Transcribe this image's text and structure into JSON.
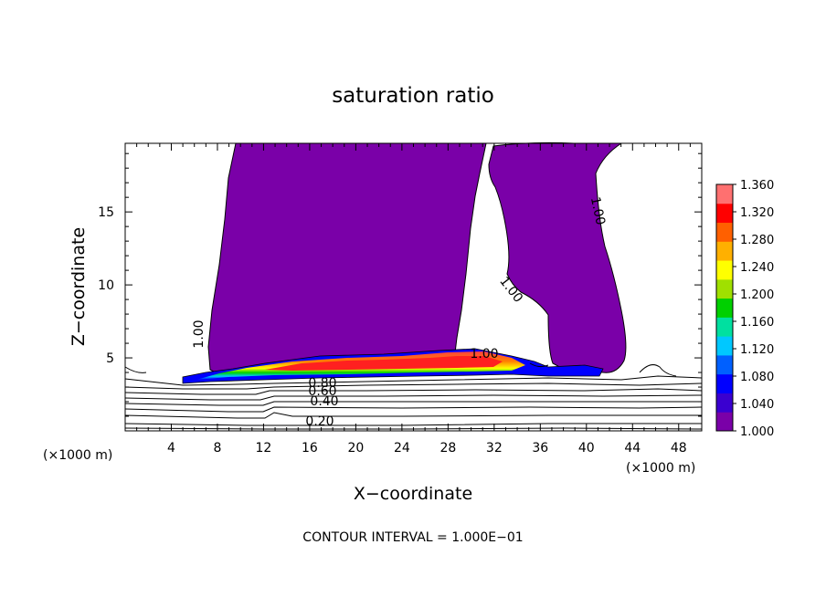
{
  "chart_data": {
    "type": "heatmap",
    "title": "saturation ratio",
    "xlabel": "X−coordinate",
    "ylabel": "Z−coordinate",
    "x_unit_left": "(×1000 m)",
    "x_unit_right": "(×1000 m)",
    "xlim": [
      0,
      50
    ],
    "ylim": [
      0,
      19.7
    ],
    "xticks": [
      4,
      8,
      12,
      16,
      20,
      24,
      28,
      32,
      36,
      40,
      44,
      48
    ],
    "yticks": [
      5,
      10,
      15
    ],
    "grid": false,
    "footer": "CONTOUR INTERVAL = 1.000E−01",
    "colorbar": {
      "min": 1.0,
      "max": 1.36,
      "labels": [
        "1.360",
        "1.320",
        "1.280",
        "1.240",
        "1.200",
        "1.160",
        "1.120",
        "1.080",
        "1.040",
        "1.000"
      ],
      "colors": [
        "#7a00a8",
        "#3a00d0",
        "#0000ff",
        "#0060ff",
        "#00c8ff",
        "#00e0a0",
        "#00d000",
        "#a0e000",
        "#ffff00",
        "#ffb000",
        "#ff6000",
        "#ff0000",
        "#ff7070"
      ]
    },
    "contour_labels": [
      {
        "text": "1.00",
        "x": 7.2,
        "z": 6.2,
        "angle": -90
      },
      {
        "text": "1.00",
        "x": 41.0,
        "z": 15.2,
        "angle": 78
      },
      {
        "text": "1.00",
        "x": 33.3,
        "z": 9.7,
        "angle": 52
      },
      {
        "text": "1.00",
        "x": 30.2,
        "z": 5.4,
        "angle": 0
      },
      {
        "text": "0.80",
        "x": 17.4,
        "z": 3.4,
        "angle": 0
      },
      {
        "text": "0.60",
        "x": 17.4,
        "z": 2.85,
        "angle": 0
      },
      {
        "text": "0.40",
        "x": 17.6,
        "z": 2.1,
        "angle": 0
      },
      {
        "text": "0.20",
        "x": 17.0,
        "z": 0.65,
        "angle": 0
      }
    ]
  }
}
